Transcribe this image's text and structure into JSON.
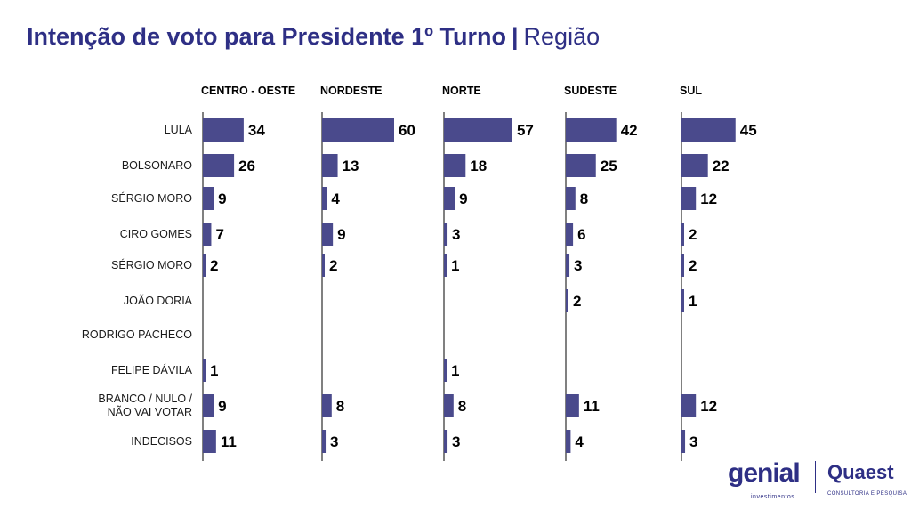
{
  "header": {
    "title": "Intenção de voto para Presidente 1º Turno",
    "separator": "|",
    "subtitle": "Região"
  },
  "colors": {
    "accent": "#4a4a8c",
    "title": "#2e2f85",
    "text": "#000000"
  },
  "chart_data": {
    "type": "bar",
    "orientation": "horizontal",
    "categories": [
      "LULA",
      "BOLSONARO",
      "SÉRGIO MORO",
      "CIRO GOMES",
      "SÉRGIO MORO",
      "JOÃO DORIA",
      "RODRIGO PACHECO",
      "FELIPE DÁVILA",
      "BRANCO / NULO / NÃO VAI VOTAR",
      "INDECISOS"
    ],
    "series": [
      {
        "name": "CENTRO - OESTE",
        "values": [
          34,
          26,
          9,
          7,
          2,
          null,
          null,
          1,
          9,
          11
        ]
      },
      {
        "name": "NORDESTE",
        "values": [
          60,
          13,
          4,
          9,
          2,
          null,
          null,
          null,
          8,
          3
        ]
      },
      {
        "name": "NORTE",
        "values": [
          57,
          18,
          9,
          3,
          1,
          null,
          null,
          1,
          8,
          3
        ]
      },
      {
        "name": "SUDESTE",
        "values": [
          42,
          25,
          8,
          6,
          3,
          2,
          null,
          null,
          11,
          4
        ]
      },
      {
        "name": "SUL",
        "values": [
          45,
          22,
          12,
          2,
          2,
          1,
          null,
          null,
          12,
          3
        ]
      }
    ],
    "xlim": [
      0,
      100
    ]
  },
  "logos": {
    "genial": "genial",
    "genial_tag": "investimentos",
    "quaest": "Quaest",
    "quaest_tag": "CONSULTORIA E PESQUISA"
  }
}
